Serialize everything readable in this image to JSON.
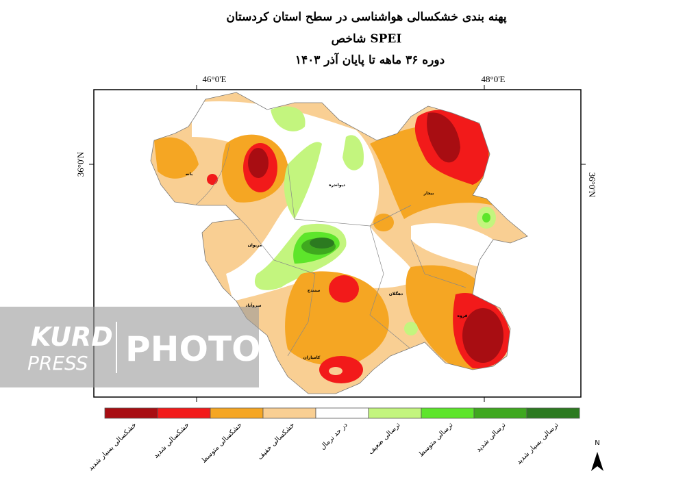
{
  "title": "پهنه بندی خشکسالی هواشناسی در سطح استان کردستان",
  "subtitle": "شاخص SPEI",
  "period": "دوره ۳۶ ماهه تا پایان آذر ۱۴۰۳",
  "axes": {
    "lon_46": "46°0'E",
    "lon_48": "48°0'E",
    "lat_36_left": "36°0'N",
    "lat_36_right": "36°0'N"
  },
  "cities": [
    "بانه",
    "دیواندره",
    "بیجار",
    "مریوان",
    "سنندج",
    "دهگلان",
    "سروآباد",
    "قروه",
    "کامیاران"
  ],
  "legend": [
    {
      "label": "خشکسالی بسیار شدید",
      "color": "#a80d12"
    },
    {
      "label": "خشکسالی شدید",
      "color": "#f21a1a"
    },
    {
      "label": "خشکسالی متوسط",
      "color": "#f5a623"
    },
    {
      "label": "خشکسالی خفیف",
      "color": "#f9cf93"
    },
    {
      "label": "در حد نرمال",
      "color": "#ffffff"
    },
    {
      "label": "ترسالی ضعیف",
      "color": "#c3f57e"
    },
    {
      "label": "ترسالی متوسط",
      "color": "#5de52b"
    },
    {
      "label": "ترسالی شدید",
      "color": "#3fa81f"
    },
    {
      "label": "ترسالی بسیار شدید",
      "color": "#2c7a20"
    }
  ],
  "north": "N",
  "watermark": {
    "brand_top": "KURD",
    "brand_bottom": "PRESS",
    "word": "PHOTO"
  }
}
